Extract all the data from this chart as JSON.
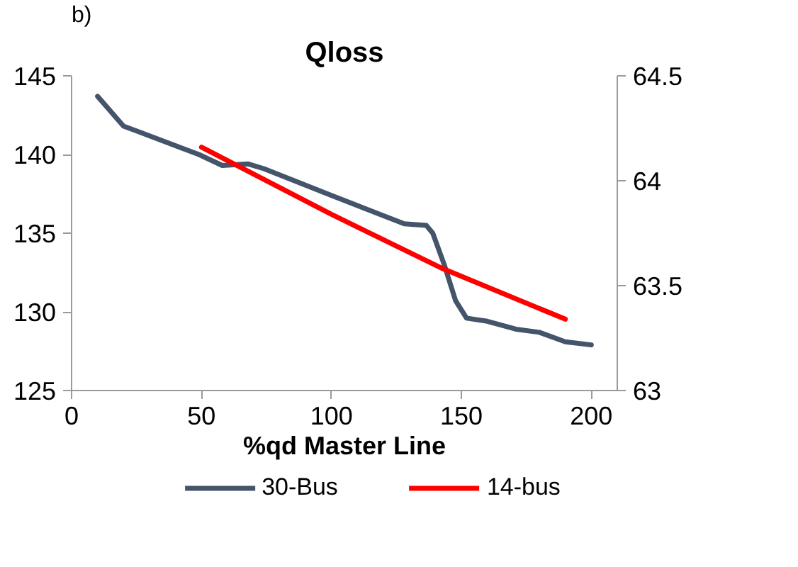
{
  "chart_data": {
    "type": "line",
    "title": "Qloss",
    "xlabel": "%qd Master Line",
    "annotations": [
      "b)"
    ],
    "xlim": [
      0,
      210
    ],
    "xticks": [
      0,
      50,
      100,
      150,
      200
    ],
    "ylim": [
      125,
      145
    ],
    "yticks": [
      125,
      130,
      135,
      140,
      145
    ],
    "y2lim": [
      63,
      64.5
    ],
    "y2ticks": [
      63,
      63.5,
      64,
      64.5
    ],
    "grid": false,
    "legend": "bottom",
    "marker": "none",
    "line_style": "solid",
    "series": [
      {
        "name": "30-Bus",
        "color": "#44546a",
        "x": [
          10,
          20,
          25,
          49,
          58,
          68,
          74,
          100,
          128,
          136.5,
          139,
          143.4,
          147.8,
          152,
          160,
          171,
          180,
          190,
          200
        ],
        "values": [
          143.7,
          141.8,
          141.5,
          140.0,
          139.3,
          139.4,
          139.1,
          137.4,
          135.6,
          135.5,
          135.0,
          133.0,
          130.7,
          129.6,
          129.4,
          128.9,
          128.7,
          128.1,
          127.9
        ]
      },
      {
        "name": "14-bus",
        "color": "#ff0000",
        "axis": "y2",
        "x": [
          50,
          100,
          143,
          190
        ],
        "values": [
          64.16,
          63.84,
          63.58,
          63.34
        ]
      }
    ]
  }
}
